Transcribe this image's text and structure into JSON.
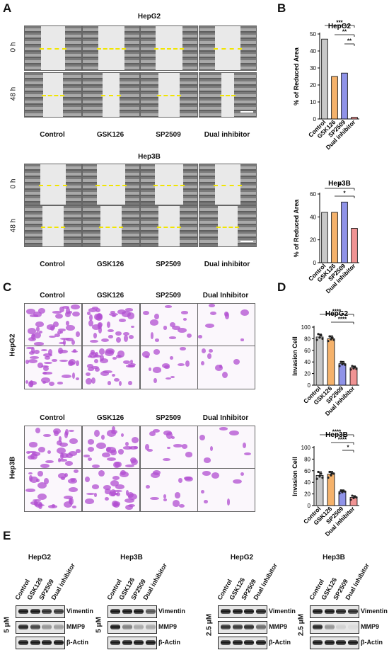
{
  "panels": {
    "A": "A",
    "B": "B",
    "C": "C",
    "D": "D",
    "E": "E"
  },
  "panelA": {
    "hepg2_title": "HepG2",
    "hep3b_title": "Hep3B",
    "row_labels": [
      "0 h",
      "48 h"
    ],
    "col_labels": [
      "Control",
      "GSK126",
      "SP2509",
      "Dual inhibitor"
    ]
  },
  "panelC": {
    "col_labels": [
      "Control",
      "GSK126",
      "SP2509",
      "Dual Inhibitor"
    ],
    "row_labels": [
      "HepG2",
      "Hep3B"
    ]
  },
  "panelE": {
    "blots": [
      {
        "title": "HepG2",
        "dose": "5 μM",
        "lanes": [
          "Control",
          "GSK126",
          "SP2509",
          "Dual inhibitor"
        ],
        "proteins": [
          "Vimentin",
          "MMP9",
          "β-Actin"
        ]
      },
      {
        "title": "Hep3B",
        "dose": "5 μM",
        "lanes": [
          "Control",
          "GSK126",
          "SP2509",
          "Dual inhibitor"
        ],
        "proteins": [
          "Vimentin",
          "MMP9",
          "β-Actin"
        ]
      },
      {
        "title": "HepG2",
        "dose": "2.5 μM",
        "lanes": [
          "Control",
          "GSK126",
          "SP2509",
          "Dual inhibitor"
        ],
        "proteins": [
          "Vimentin",
          "MMP9",
          "β-Actin"
        ]
      },
      {
        "title": "Hep3B",
        "dose": "2.5 μM",
        "lanes": [
          "Control",
          "GSK126",
          "SP2509",
          "Dual inhibitor"
        ],
        "proteins": [
          "Vimentin",
          "MMP9",
          "β-Actin"
        ]
      }
    ]
  },
  "colors": {
    "Control": "#c8c8c8",
    "GSK126": "#f5b26b",
    "SP2509": "#8f93e8",
    "Dual inhibitor": "#f09393"
  },
  "chart_data": [
    {
      "type": "bar",
      "title": "HepG2",
      "ylabel": "% of Reduced Area",
      "ylim": [
        0,
        50
      ],
      "yticks": [
        0,
        10,
        20,
        30,
        40,
        50
      ],
      "categories": [
        "Control",
        "GSK126",
        "SP2509",
        "Dual inhibitor"
      ],
      "values": [
        47,
        25,
        27,
        1
      ],
      "significance": [
        {
          "from": 0,
          "to": 3,
          "label": "***"
        },
        {
          "from": 1,
          "to": 3,
          "label": "**"
        },
        {
          "from": 2,
          "to": 3,
          "label": "**"
        }
      ]
    },
    {
      "type": "bar",
      "title": "Hep3B",
      "ylabel": "% of Reduced Area",
      "ylim": [
        0,
        60
      ],
      "yticks": [
        0,
        20,
        40,
        60
      ],
      "categories": [
        "Control",
        "GSK126",
        "SP2509",
        "Dual inhibitor"
      ],
      "values": [
        44,
        44,
        53,
        30
      ],
      "significance": [
        {
          "from": 0,
          "to": 3,
          "label": "*"
        },
        {
          "from": 1,
          "to": 3,
          "label": "*"
        }
      ]
    },
    {
      "type": "bar",
      "title": "HepG2",
      "ylabel": "Invasion Cell",
      "ylim": [
        0,
        100
      ],
      "yticks": [
        0,
        20,
        40,
        60,
        80,
        100
      ],
      "categories": [
        "Control",
        "GSK126",
        "SP2509",
        "Dual inhibitor"
      ],
      "values": [
        83,
        80,
        37,
        30
      ],
      "errors": [
        5,
        5,
        4,
        3
      ],
      "points": [
        [
          78,
          88,
          82,
          86,
          80
        ],
        [
          76,
          84,
          79,
          82,
          78
        ],
        [
          33,
          40,
          36,
          38,
          35
        ],
        [
          27,
          33,
          29,
          31,
          28
        ]
      ],
      "significance": [
        {
          "from": 0,
          "to": 3,
          "label": "****"
        },
        {
          "from": 1,
          "to": 3,
          "label": "****"
        }
      ]
    },
    {
      "type": "bar",
      "title": "Hep3B",
      "ylabel": "Invasion Cell",
      "ylim": [
        0,
        100
      ],
      "yticks": [
        0,
        20,
        40,
        60,
        80,
        100
      ],
      "categories": [
        "Control",
        "GSK126",
        "SP2509",
        "Dual inhibitor"
      ],
      "values": [
        52,
        54,
        24,
        14
      ],
      "errors": [
        6,
        5,
        3,
        3
      ],
      "points": [
        [
          46,
          58,
          50,
          55,
          48
        ],
        [
          48,
          58,
          52,
          56,
          55
        ],
        [
          21,
          26,
          23,
          25,
          24
        ],
        [
          10,
          17,
          13,
          15,
          14
        ]
      ],
      "significance": [
        {
          "from": 0,
          "to": 3,
          "label": "****"
        },
        {
          "from": 1,
          "to": 3,
          "label": "****"
        },
        {
          "from": 2,
          "to": 3,
          "label": "*"
        }
      ]
    }
  ]
}
